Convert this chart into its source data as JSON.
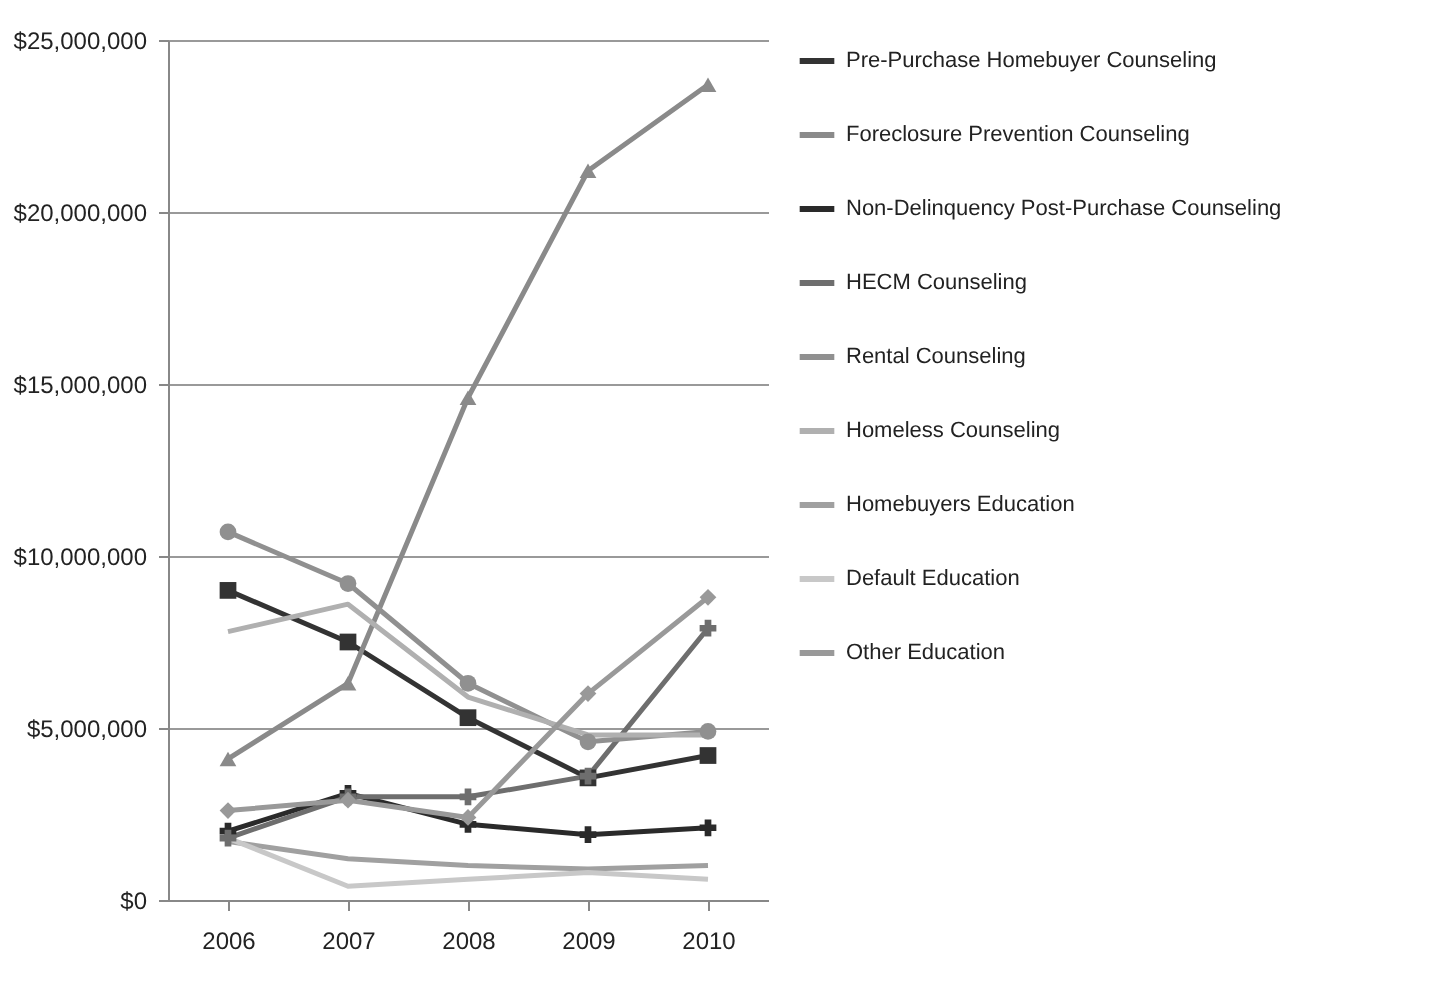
{
  "chart_data": {
    "type": "line",
    "categories": [
      "2006",
      "2007",
      "2008",
      "2009",
      "2010"
    ],
    "ylim": [
      0,
      25000000
    ],
    "yticks": [
      {
        "value": 0,
        "label": "$0"
      },
      {
        "value": 5000000,
        "label": "$5,000,000"
      },
      {
        "value": 10000000,
        "label": "$10,000,000"
      },
      {
        "value": 15000000,
        "label": "$15,000,000"
      },
      {
        "value": 20000000,
        "label": "$20,000,000"
      },
      {
        "value": 25000000,
        "label": "$25,000,000"
      }
    ],
    "grid": "y",
    "legend": "right",
    "series": [
      {
        "name": "Pre-Purchase Homebuyer Counseling",
        "color": "#333333",
        "marker": "square",
        "values": [
          9000000,
          7500000,
          5300000,
          3550000,
          4200000
        ]
      },
      {
        "name": "Foreclosure Prevention Counseling",
        "color": "#8a8a8a",
        "marker": "triangle",
        "values": [
          4100000,
          6300000,
          14600000,
          21200000,
          23700000
        ]
      },
      {
        "name": "Non-Delinquency Post-Purchase Counseling",
        "color": "#2a2a2a",
        "marker": "cross",
        "values": [
          2000000,
          3100000,
          2200000,
          1900000,
          2100000
        ]
      },
      {
        "name": "HECM Counseling",
        "color": "#6e6e6e",
        "marker": "cross",
        "values": [
          1800000,
          3000000,
          3000000,
          3600000,
          7900000
        ]
      },
      {
        "name": "Rental Counseling",
        "color": "#909090",
        "marker": "circle",
        "values": [
          10700000,
          9200000,
          6300000,
          4600000,
          4900000
        ]
      },
      {
        "name": "Homeless Counseling",
        "color": "#b0b0b0",
        "marker": "none",
        "values": [
          7800000,
          8600000,
          5900000,
          4800000,
          4800000
        ]
      },
      {
        "name": "Homebuyers Education",
        "color": "#a0a0a0",
        "marker": "none",
        "values": [
          1700000,
          1200000,
          1000000,
          900000,
          1000000
        ]
      },
      {
        "name": "Default Education",
        "color": "#c8c8c8",
        "marker": "none",
        "values": [
          1800000,
          400000,
          600000,
          800000,
          600000
        ]
      },
      {
        "name": "Other Education",
        "color": "#999999",
        "marker": "diamond",
        "values": [
          2600000,
          2900000,
          2400000,
          6000000,
          8800000
        ]
      }
    ]
  }
}
